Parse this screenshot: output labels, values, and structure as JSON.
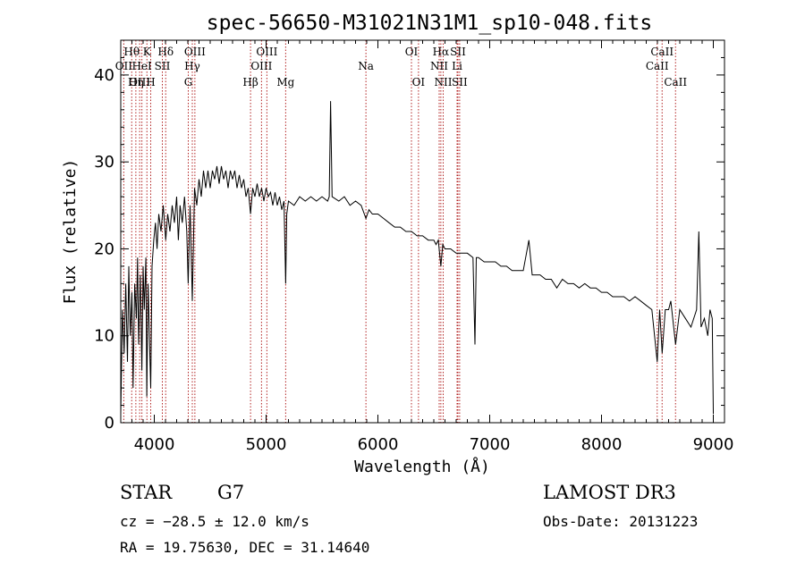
{
  "chart_data": {
    "type": "line",
    "title": "spec-56650-M31021N31M1_sp10-048.fits",
    "xlabel": "Wavelength (Å)",
    "ylabel": "Flux (relative)",
    "xlim": [
      3700,
      9100
    ],
    "ylim": [
      0,
      44
    ],
    "xticks": [
      4000,
      5000,
      6000,
      7000,
      8000,
      9000
    ],
    "yticks": [
      0,
      10,
      20,
      30,
      40
    ],
    "series": [
      {
        "name": "flux",
        "points": [
          [
            3700,
            1
          ],
          [
            3715,
            13
          ],
          [
            3730,
            8
          ],
          [
            3745,
            16
          ],
          [
            3760,
            7
          ],
          [
            3772,
            18
          ],
          [
            3785,
            10
          ],
          [
            3800,
            15
          ],
          [
            3810,
            4
          ],
          [
            3825,
            16
          ],
          [
            3840,
            12
          ],
          [
            3850,
            19
          ],
          [
            3860,
            9
          ],
          [
            3875,
            17
          ],
          [
            3889,
            6
          ],
          [
            3900,
            18
          ],
          [
            3910,
            13
          ],
          [
            3925,
            19
          ],
          [
            3933,
            3
          ],
          [
            3945,
            16
          ],
          [
            3960,
            8
          ],
          [
            3968,
            4
          ],
          [
            3980,
            18
          ],
          [
            3995,
            21
          ],
          [
            4010,
            23
          ],
          [
            4025,
            20
          ],
          [
            4040,
            24
          ],
          [
            4060,
            22
          ],
          [
            4080,
            25
          ],
          [
            4102,
            21
          ],
          [
            4120,
            24
          ],
          [
            4140,
            22
          ],
          [
            4160,
            25
          ],
          [
            4180,
            23
          ],
          [
            4200,
            26
          ],
          [
            4215,
            21
          ],
          [
            4230,
            25
          ],
          [
            4250,
            23
          ],
          [
            4270,
            26
          ],
          [
            4290,
            22
          ],
          [
            4303,
            16
          ],
          [
            4320,
            25
          ],
          [
            4340,
            14
          ],
          [
            4360,
            27
          ],
          [
            4380,
            25
          ],
          [
            4400,
            28
          ],
          [
            4420,
            26
          ],
          [
            4440,
            29
          ],
          [
            4460,
            27
          ],
          [
            4480,
            29
          ],
          [
            4500,
            27
          ],
          [
            4520,
            29
          ],
          [
            4540,
            28
          ],
          [
            4560,
            29.5
          ],
          [
            4580,
            27.5
          ],
          [
            4600,
            29.5
          ],
          [
            4620,
            28
          ],
          [
            4640,
            29
          ],
          [
            4660,
            27
          ],
          [
            4680,
            29
          ],
          [
            4700,
            28
          ],
          [
            4720,
            29
          ],
          [
            4740,
            27
          ],
          [
            4760,
            28.5
          ],
          [
            4780,
            27
          ],
          [
            4800,
            28
          ],
          [
            4820,
            26
          ],
          [
            4840,
            27
          ],
          [
            4861,
            24
          ],
          [
            4880,
            27
          ],
          [
            4900,
            26
          ],
          [
            4920,
            27.5
          ],
          [
            4940,
            26
          ],
          [
            4960,
            27
          ],
          [
            4980,
            25.5
          ],
          [
            5000,
            27
          ],
          [
            5020,
            26
          ],
          [
            5040,
            26.5
          ],
          [
            5060,
            25
          ],
          [
            5080,
            26.5
          ],
          [
            5100,
            25
          ],
          [
            5120,
            26
          ],
          [
            5140,
            24.5
          ],
          [
            5160,
            25.5
          ],
          [
            5175,
            16
          ],
          [
            5185,
            24
          ],
          [
            5200,
            25.5
          ],
          [
            5250,
            25
          ],
          [
            5300,
            26
          ],
          [
            5350,
            25.5
          ],
          [
            5400,
            26
          ],
          [
            5450,
            25.5
          ],
          [
            5500,
            26
          ],
          [
            5550,
            25.5
          ],
          [
            5565,
            26
          ],
          [
            5577,
            37
          ],
          [
            5590,
            26
          ],
          [
            5650,
            25.5
          ],
          [
            5700,
            26
          ],
          [
            5750,
            25
          ],
          [
            5800,
            25.5
          ],
          [
            5850,
            25
          ],
          [
            5893,
            23.5
          ],
          [
            5920,
            24.5
          ],
          [
            5950,
            24
          ],
          [
            6000,
            24
          ],
          [
            6050,
            23.5
          ],
          [
            6100,
            23
          ],
          [
            6150,
            22.5
          ],
          [
            6200,
            22.5
          ],
          [
            6250,
            22
          ],
          [
            6300,
            22
          ],
          [
            6350,
            21.5
          ],
          [
            6400,
            21.5
          ],
          [
            6450,
            21
          ],
          [
            6500,
            21
          ],
          [
            6520,
            20.5
          ],
          [
            6540,
            21
          ],
          [
            6563,
            18
          ],
          [
            6580,
            20.5
          ],
          [
            6600,
            20
          ],
          [
            6650,
            20
          ],
          [
            6700,
            19.5
          ],
          [
            6750,
            19.5
          ],
          [
            6800,
            19.5
          ],
          [
            6850,
            19
          ],
          [
            6868,
            9
          ],
          [
            6880,
            19
          ],
          [
            6900,
            19
          ],
          [
            6950,
            18.5
          ],
          [
            7000,
            18.5
          ],
          [
            7050,
            18.5
          ],
          [
            7100,
            18
          ],
          [
            7150,
            18
          ],
          [
            7200,
            17.5
          ],
          [
            7250,
            17.5
          ],
          [
            7300,
            17.5
          ],
          [
            7350,
            21
          ],
          [
            7380,
            17
          ],
          [
            7450,
            17
          ],
          [
            7500,
            16.5
          ],
          [
            7550,
            16.5
          ],
          [
            7600,
            15.5
          ],
          [
            7650,
            16.5
          ],
          [
            7700,
            16
          ],
          [
            7750,
            16
          ],
          [
            7800,
            15.5
          ],
          [
            7850,
            16
          ],
          [
            7900,
            15.5
          ],
          [
            7950,
            15.5
          ],
          [
            8000,
            15
          ],
          [
            8050,
            15
          ],
          [
            8100,
            14.5
          ],
          [
            8150,
            14.5
          ],
          [
            8200,
            14.5
          ],
          [
            8250,
            14
          ],
          [
            8300,
            14.5
          ],
          [
            8350,
            14
          ],
          [
            8400,
            13.5
          ],
          [
            8450,
            13
          ],
          [
            8498,
            7
          ],
          [
            8520,
            13
          ],
          [
            8542,
            8
          ],
          [
            8570,
            13
          ],
          [
            8600,
            13
          ],
          [
            8620,
            14
          ],
          [
            8662,
            9
          ],
          [
            8700,
            13
          ],
          [
            8750,
            12
          ],
          [
            8800,
            11
          ],
          [
            8850,
            13
          ],
          [
            8870,
            22
          ],
          [
            8890,
            11
          ],
          [
            8920,
            12
          ],
          [
            8950,
            10
          ],
          [
            8970,
            13
          ],
          [
            8990,
            12
          ],
          [
            9000,
            1
          ]
        ]
      }
    ],
    "lines": [
      {
        "label": "Hθ",
        "wl": 3798,
        "row": 1
      },
      {
        "label": "OII",
        "wl": 3727,
        "row": 2
      },
      {
        "label": "OIII",
        "wl": 3869,
        "row": 3
      },
      {
        "label": "K",
        "wl": 3934,
        "row": 1
      },
      {
        "label": "HeI",
        "wl": 3889,
        "row": 2
      },
      {
        "label": "Hη",
        "wl": 3835,
        "row": 3
      },
      {
        "label": "Hδ",
        "wl": 4102,
        "row": 1
      },
      {
        "label": "SII",
        "wl": 4072,
        "row": 2
      },
      {
        "label": "H",
        "wl": 3968,
        "row": 3
      },
      {
        "label": "OIII",
        "wl": 4363,
        "row": 1
      },
      {
        "label": "Hγ",
        "wl": 4340,
        "row": 2
      },
      {
        "label": "G",
        "wl": 4304,
        "row": 3
      },
      {
        "label": "OIII",
        "wl": 5007,
        "row": 1
      },
      {
        "label": "OIII",
        "wl": 4959,
        "row": 2
      },
      {
        "label": "Hβ",
        "wl": 4861,
        "row": 3
      },
      {
        "label": "Mg",
        "wl": 5175,
        "row": 3
      },
      {
        "label": "Na",
        "wl": 5893,
        "row": 2
      },
      {
        "label": "OI",
        "wl": 6300,
        "row": 1
      },
      {
        "label": "OI",
        "wl": 6363,
        "row": 3
      },
      {
        "label": "Hα",
        "wl": 6563,
        "row": 1
      },
      {
        "label": "SII",
        "wl": 6716,
        "row": 1
      },
      {
        "label": "NII",
        "wl": 6548,
        "row": 2
      },
      {
        "label": "Li",
        "wl": 6708,
        "row": 2
      },
      {
        "label": "NII",
        "wl": 6584,
        "row": 3
      },
      {
        "label": "SII",
        "wl": 6731,
        "row": 3
      },
      {
        "label": "CaII",
        "wl": 8542,
        "row": 1
      },
      {
        "label": "CaII",
        "wl": 8498,
        "row": 2
      },
      {
        "label": "CaII",
        "wl": 8662,
        "row": 3
      }
    ]
  },
  "info": {
    "object_class": "STAR",
    "subclass": "G7",
    "survey": "LAMOST DR3",
    "redshift": "cz = −28.5 ± 12.0 km/s",
    "obs_date": "Obs-Date: 20131223",
    "coords": "RA =  19.75630, DEC =  31.14640"
  },
  "colors": {
    "line_marker": "#b22222",
    "spectrum": "#000000",
    "axis": "#000000"
  }
}
